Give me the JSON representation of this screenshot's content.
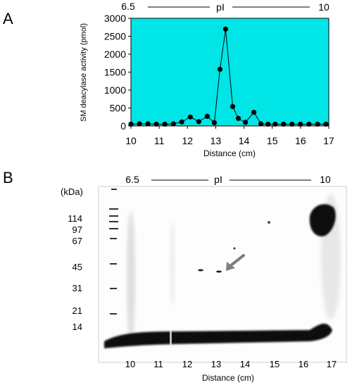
{
  "panel_a": {
    "letter": "A",
    "ph_left": "6.5",
    "ph_mid": "pI",
    "ph_right": "10"
  },
  "panel_b": {
    "letter": "B",
    "ph_left": "6.5",
    "ph_mid": "pI",
    "ph_right": "10",
    "kda_label": "(kDa)",
    "markers": [
      "114",
      "97",
      "67",
      "45",
      "31",
      "21",
      "14"
    ],
    "x_ticks": [
      "10",
      "11",
      "12",
      "13",
      "14",
      "15",
      "16",
      "17"
    ],
    "xlabel": "Distance (cm)",
    "arrow_color": "#7f7f7f"
  },
  "chart_data": {
    "type": "line",
    "title": "",
    "xlabel": "Distance (cm)",
    "ylabel": "SM deacylase activity (pmol)",
    "xlim": [
      10,
      17
    ],
    "ylim": [
      0,
      3000
    ],
    "xticks": [
      "10",
      "11",
      "12",
      "13",
      "14",
      "15",
      "16",
      "17"
    ],
    "yticks": [
      "0",
      "500",
      "1000",
      "1500",
      "2000",
      "2500",
      "3000"
    ],
    "background_color": "#00e5e5",
    "series": [
      {
        "x": [
          10.0,
          10.3,
          10.6,
          10.9,
          11.2,
          11.5,
          11.8,
          12.1,
          12.4,
          12.7,
          12.95,
          13.15,
          13.35,
          13.6,
          13.8,
          14.05,
          14.35,
          14.6,
          14.85,
          15.1,
          15.4,
          15.7,
          16.0,
          16.3,
          16.6,
          16.9
        ],
        "y": [
          50,
          60,
          60,
          50,
          50,
          60,
          110,
          250,
          120,
          270,
          90,
          1580,
          2700,
          540,
          210,
          100,
          380,
          60,
          50,
          50,
          50,
          50,
          50,
          50,
          50,
          50
        ]
      }
    ]
  }
}
